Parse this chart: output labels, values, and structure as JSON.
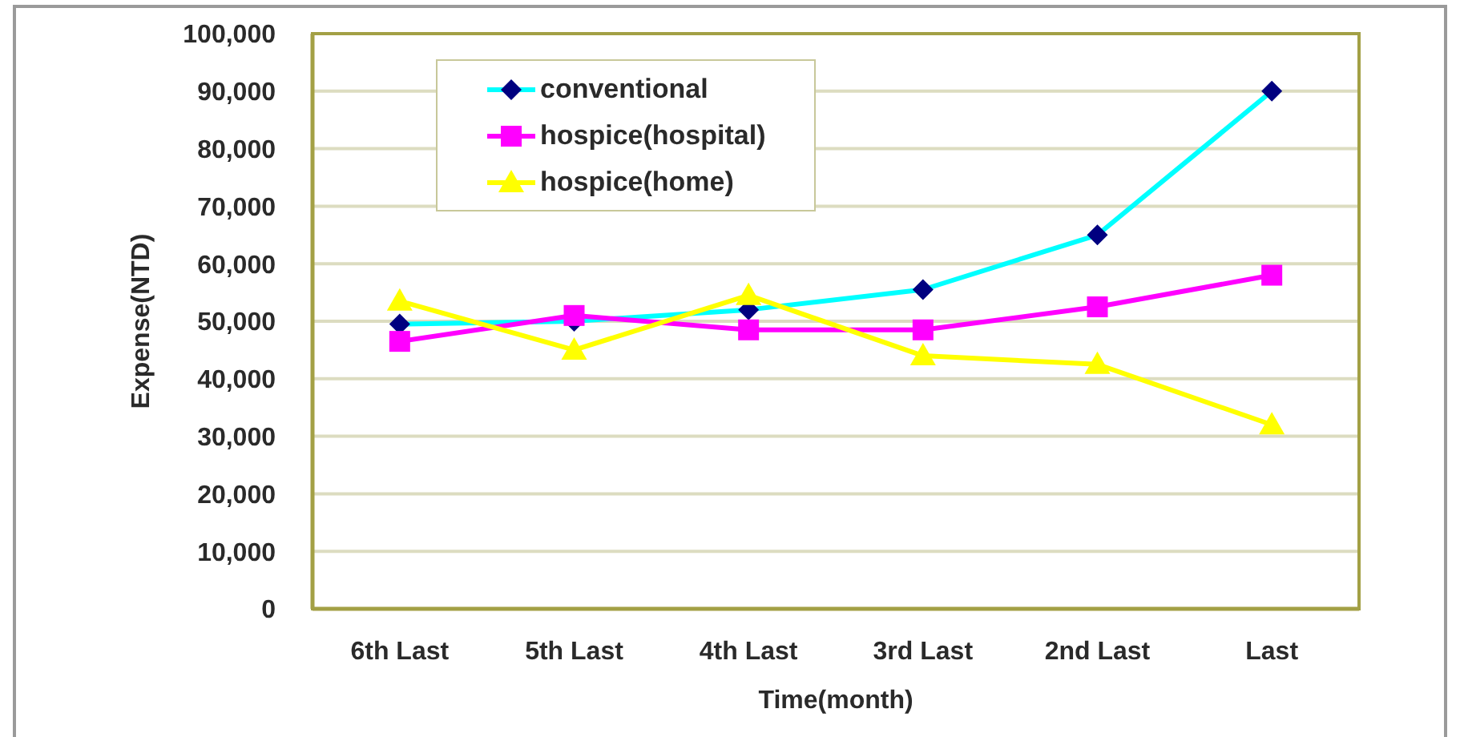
{
  "chart_data": {
    "type": "line",
    "xlabel": "Time(month)",
    "ylabel": "Expense(NTD)",
    "categories": [
      "6th Last",
      "5th Last",
      "4th Last",
      "3rd Last",
      "2nd Last",
      "Last"
    ],
    "series": [
      {
        "name": "conventional",
        "color": "#00ffff",
        "colors": [
          "#000080",
          "#000080",
          "#000080",
          "#000080",
          "#000080",
          "#000080"
        ],
        "marker": "diamond",
        "values": [
          49500,
          50000,
          52000,
          55500,
          65000,
          90000
        ]
      },
      {
        "name": "hospice(hospital)",
        "color": "#ff00ff",
        "marker": "square",
        "values": [
          46500,
          51000,
          48500,
          48500,
          52500,
          58000
        ]
      },
      {
        "name": "hospice(home)",
        "color": "#ffff00",
        "marker": "triangle",
        "values": [
          53500,
          45000,
          54500,
          44000,
          42500,
          32000
        ]
      }
    ],
    "ylim": [
      0,
      100000
    ],
    "yticks": [
      0,
      {
        "value": 10000,
        "label": "10,000"
      },
      {
        "value": 20000,
        "label": "20,000"
      },
      {
        "value": 30000,
        "label": "30,000"
      },
      {
        "value": 40000,
        "label": "40,000"
      },
      {
        "value": 50000,
        "label": "50,000"
      },
      {
        "value": 60000,
        "label": "60,000"
      },
      {
        "value": 70000,
        "label": "70,000"
      },
      {
        "value": 80000,
        "label": "80,000"
      },
      {
        "value": 90000,
        "label": "90,000"
      },
      {
        "value": 100000,
        "label": "100,000"
      }
    ],
    "grid": "y",
    "legend": "top left"
  }
}
